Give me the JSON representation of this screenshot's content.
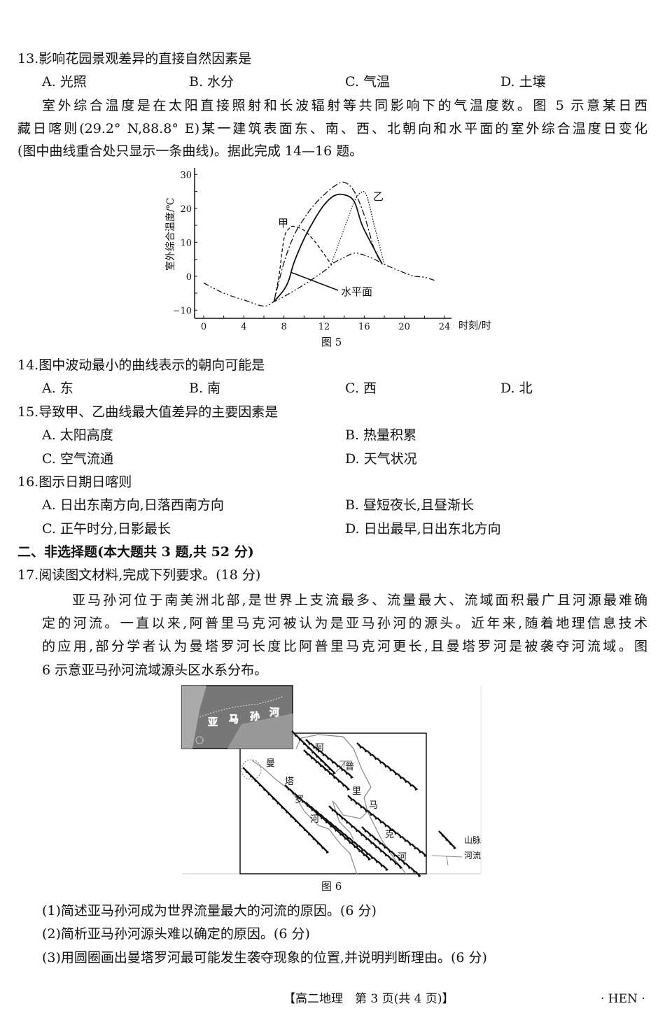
{
  "q13": {
    "stem": "13.影响花园景观差异的直接自然因素是",
    "options": [
      "A. 光照",
      "B. 水分",
      "C. 气温",
      "D. 土壤"
    ]
  },
  "intro_14_16": [
    "室外综合温度是在太阳直接照射和长波辐射等共同影响下的气温度数。图 5 示意某日西",
    "藏日喀则(29.2° N,88.8° E)某一建筑表面东、南、西、北朝向和水平面的室外综合温度日变化",
    "(图中曲线重合处只显示一条曲线)。据此完成 14—16 题。"
  ],
  "chart_data": {
    "type": "line",
    "caption": "图 5",
    "xlabel": "时刻/时",
    "ylabel": "室外综合温度/℃",
    "xlim": [
      0,
      24
    ],
    "ylim": [
      -10,
      30
    ],
    "xticks": [
      "0",
      "4",
      "8",
      "12",
      "16",
      "20",
      "24"
    ],
    "yticks": [
      "-10",
      "0",
      "10",
      "20",
      "30"
    ],
    "grid": false,
    "annotations": [
      "甲",
      "乙",
      "水平面"
    ],
    "series": [
      {
        "name": "",
        "style": "dash-dot-dot",
        "points": [
          [
            0,
            -2
          ],
          [
            2,
            -5
          ],
          [
            4,
            -7
          ],
          [
            6,
            -8.8
          ],
          [
            7,
            -7.5
          ],
          [
            8,
            -6
          ],
          [
            10,
            -2.5
          ],
          [
            12,
            1.5
          ],
          [
            13,
            4
          ],
          [
            14,
            5.5
          ],
          [
            15,
            6.8
          ],
          [
            16,
            6.2
          ],
          [
            17,
            5
          ],
          [
            18,
            3.5
          ],
          [
            19,
            2.2
          ],
          [
            20,
            1
          ],
          [
            21,
            0
          ],
          [
            22,
            -0.3
          ],
          [
            23,
            -1.2
          ]
        ]
      },
      {
        "name": "甲",
        "style": "dashed",
        "points": [
          [
            7,
            -7.5
          ],
          [
            7.5,
            0
          ],
          [
            8,
            11
          ],
          [
            8.5,
            14
          ],
          [
            9,
            14.7
          ],
          [
            10,
            13.5
          ],
          [
            11,
            10.5
          ],
          [
            12,
            6.5
          ],
          [
            12.7,
            3.5
          ]
        ]
      },
      {
        "name": "水平面",
        "style": "solid",
        "points": [
          [
            7,
            -7.5
          ],
          [
            8,
            -4
          ],
          [
            8.5,
            -1
          ],
          [
            9,
            4
          ],
          [
            10,
            11
          ],
          [
            11,
            16.5
          ],
          [
            12,
            21
          ],
          [
            13,
            23.7
          ],
          [
            14,
            24
          ],
          [
            15,
            22
          ],
          [
            15.8,
            15
          ],
          [
            17,
            8
          ],
          [
            17.8,
            3.5
          ]
        ]
      },
      {
        "name": "",
        "style": "dash-dot",
        "points": [
          [
            7,
            -7.5
          ],
          [
            8,
            4
          ],
          [
            9,
            12
          ],
          [
            10,
            17
          ],
          [
            11,
            21
          ],
          [
            12,
            24
          ],
          [
            13,
            26.5
          ],
          [
            14,
            27.7
          ],
          [
            15,
            25
          ],
          [
            16,
            18
          ],
          [
            17,
            8
          ],
          [
            17.8,
            3.5
          ]
        ]
      },
      {
        "name": "乙",
        "style": "dotted",
        "points": [
          [
            12.7,
            3.5
          ],
          [
            13.5,
            10
          ],
          [
            14.5,
            18
          ],
          [
            15,
            22
          ],
          [
            15.6,
            24.5
          ],
          [
            16.2,
            24
          ],
          [
            17,
            15
          ],
          [
            18,
            3.5
          ]
        ]
      }
    ]
  },
  "q14": {
    "stem": "14.图中波动最小的曲线表示的朝向可能是",
    "options": [
      "A. 东",
      "B. 南",
      "C. 西",
      "D. 北"
    ]
  },
  "q15": {
    "stem": "15.导致甲、乙曲线最大值差异的主要因素是",
    "options": [
      "A. 太阳高度",
      "B. 热量积累",
      "C. 空气流通",
      "D. 天气状况"
    ]
  },
  "q16": {
    "stem": "16.图示日期日喀则",
    "options": [
      "A. 日出东南方向,日落西南方向",
      "B. 昼短夜长,且昼渐长",
      "C. 正午时分,日影最长",
      "D. 日出最早,日出东北方向"
    ]
  },
  "section2": "二、非选择题(本大题共 3 题,共 52 分)",
  "q17": {
    "stem": "17.阅读图文材料,完成下列要求。(18 分)",
    "para": [
      "亚马孙河位于南美洲北部,是世界上支流最多、流量最大、流域面积最广且河源最难确",
      "定的河流。一直以来,阿普里马克河被认为是亚马孙河的源头。近年来,随着地理信息技术",
      "的应用,部分学者认为曼塔罗河长度比阿普里马克河更长,且曼塔罗河是被袭夺河流域。图",
      "6 示意亚马孙河流域源头区水系分布。"
    ],
    "figure": {
      "caption": "图 6",
      "inset_label": [
        "亚",
        "马",
        "孙",
        "河"
      ],
      "mantaro": [
        "曼",
        "塔",
        "罗",
        "河"
      ],
      "apurimac": [
        "阿",
        "普",
        "里",
        "马",
        "克",
        "河"
      ],
      "legend": [
        "山脉",
        "河流"
      ]
    },
    "subs": [
      "(1)简述亚马孙河成为世界流量最大的河流的原因。(6 分)",
      "(2)简析亚马孙河源头难以确定的原因。(6 分)",
      "(3)用圆圈画出曼塔罗河最可能发生袭夺现象的位置,并说明判断理由。(6 分)"
    ]
  },
  "footer": {
    "page": "【高二地理　第 3 页(共 4 页)】",
    "code": "· HEN ·"
  }
}
